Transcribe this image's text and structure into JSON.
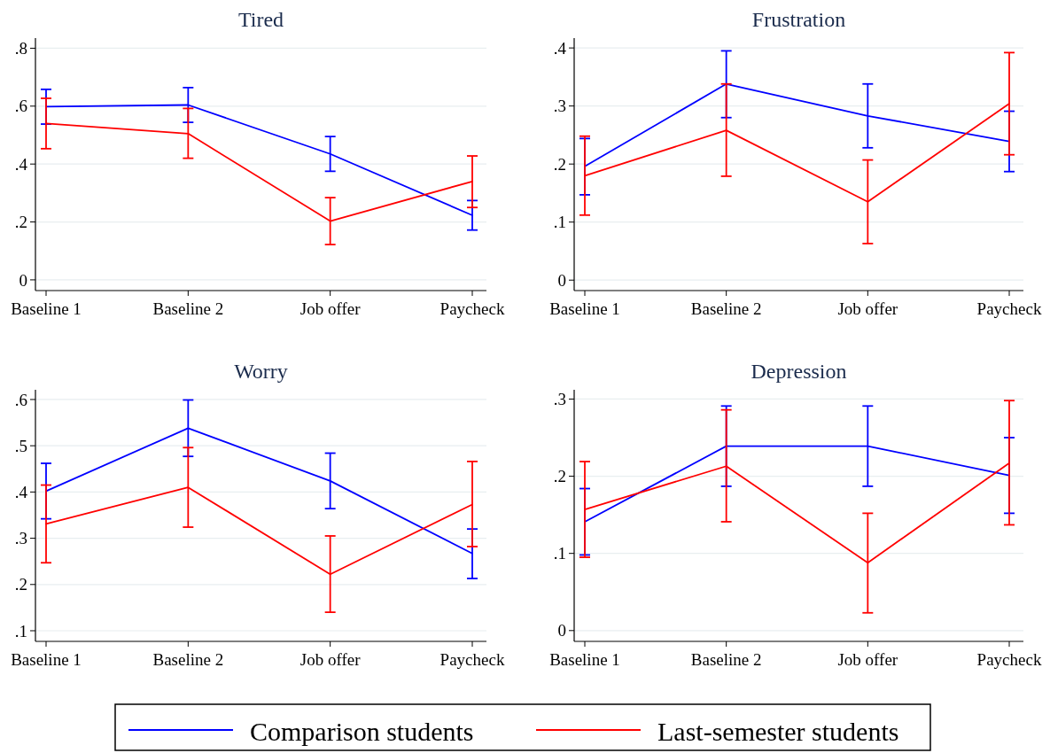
{
  "chart_data": [
    {
      "type": "line",
      "title": "Tired",
      "categories": [
        "Baseline 1",
        "Baseline 2",
        "Job offer",
        "Paycheck"
      ],
      "ylim": [
        -0.037,
        0.835
      ],
      "yticks": [
        {
          "value": 0,
          "label": "0"
        },
        {
          "value": 0.2,
          "label": ".2"
        },
        {
          "value": 0.4,
          "label": ".4"
        },
        {
          "value": 0.6,
          "label": ".6"
        },
        {
          "value": 0.8,
          "label": ".8"
        }
      ],
      "grid": "y",
      "legend": "bottom",
      "marker": "none",
      "line_style": "solid",
      "series": [
        {
          "name": "Comparison students",
          "color": "#0000ff",
          "values": [
            0.598,
            0.604,
            0.435,
            0.223
          ],
          "errors": [
            [
              0.538,
              0.658
            ],
            [
              0.544,
              0.664
            ],
            [
              0.375,
              0.495
            ],
            [
              0.172,
              0.274
            ]
          ]
        },
        {
          "name": "Last-semester students",
          "color": "#ff0000",
          "values": [
            0.54,
            0.505,
            0.203,
            0.34
          ],
          "errors": [
            [
              0.453,
              0.627
            ],
            [
              0.42,
              0.592
            ],
            [
              0.122,
              0.284
            ],
            [
              0.25,
              0.428
            ]
          ]
        }
      ]
    },
    {
      "type": "line",
      "title": "Frustration",
      "categories": [
        "Baseline 1",
        "Baseline 2",
        "Job offer",
        "Paycheck"
      ],
      "ylim": [
        -0.018,
        0.417
      ],
      "yticks": [
        {
          "value": 0,
          "label": "0"
        },
        {
          "value": 0.1,
          "label": ".1"
        },
        {
          "value": 0.2,
          "label": ".2"
        },
        {
          "value": 0.3,
          "label": ".3"
        },
        {
          "value": 0.4,
          "label": ".4"
        }
      ],
      "grid": "y",
      "marker": "none",
      "line_style": "solid",
      "series": [
        {
          "color": "#0000ff",
          "values": [
            0.196,
            0.338,
            0.283,
            0.239
          ],
          "errors": [
            [
              0.147,
              0.244
            ],
            [
              0.28,
              0.395
            ],
            [
              0.228,
              0.338
            ],
            [
              0.187,
              0.291
            ]
          ]
        },
        {
          "color": "#ff0000",
          "values": [
            0.18,
            0.258,
            0.135,
            0.304
          ],
          "errors": [
            [
              0.112,
              0.248
            ],
            [
              0.179,
              0.338
            ],
            [
              0.063,
              0.207
            ],
            [
              0.216,
              0.392
            ]
          ]
        }
      ]
    },
    {
      "type": "line",
      "title": "Worry",
      "categories": [
        "Baseline 1",
        "Baseline 2",
        "Job offer",
        "Paycheck"
      ],
      "ylim": [
        0.077,
        0.621
      ],
      "yticks": [
        {
          "value": 0.1,
          "label": ".1"
        },
        {
          "value": 0.2,
          "label": ".2"
        },
        {
          "value": 0.3,
          "label": ".3"
        },
        {
          "value": 0.4,
          "label": ".4"
        },
        {
          "value": 0.5,
          "label": ".5"
        },
        {
          "value": 0.6,
          "label": ".6"
        }
      ],
      "grid": "y",
      "marker": "none",
      "line_style": "solid",
      "series": [
        {
          "color": "#0000ff",
          "values": [
            0.402,
            0.538,
            0.424,
            0.267
          ],
          "errors": [
            [
              0.342,
              0.462
            ],
            [
              0.477,
              0.599
            ],
            [
              0.364,
              0.484
            ],
            [
              0.213,
              0.32
            ]
          ]
        },
        {
          "color": "#ff0000",
          "values": [
            0.331,
            0.41,
            0.222,
            0.373
          ],
          "errors": [
            [
              0.247,
              0.415
            ],
            [
              0.324,
              0.496
            ],
            [
              0.14,
              0.305
            ],
            [
              0.282,
              0.466
            ]
          ]
        }
      ]
    },
    {
      "type": "line",
      "title": "Depression",
      "categories": [
        "Baseline 1",
        "Baseline 2",
        "Job offer",
        "Paycheck"
      ],
      "ylim": [
        -0.014,
        0.312
      ],
      "yticks": [
        {
          "value": 0,
          "label": "0"
        },
        {
          "value": 0.1,
          "label": ".1"
        },
        {
          "value": 0.2,
          "label": ".2"
        },
        {
          "value": 0.3,
          "label": ".3"
        }
      ],
      "grid": "y",
      "marker": "none",
      "line_style": "solid",
      "series": [
        {
          "color": "#0000ff",
          "values": [
            0.141,
            0.239,
            0.239,
            0.201
          ],
          "errors": [
            [
              0.098,
              0.184
            ],
            [
              0.187,
              0.291
            ],
            [
              0.187,
              0.291
            ],
            [
              0.152,
              0.25
            ]
          ]
        },
        {
          "color": "#ff0000",
          "values": [
            0.157,
            0.213,
            0.088,
            0.217
          ],
          "errors": [
            [
              0.095,
              0.219
            ],
            [
              0.141,
              0.286
            ],
            [
              0.023,
              0.152
            ],
            [
              0.137,
              0.298
            ]
          ]
        }
      ]
    }
  ]
}
